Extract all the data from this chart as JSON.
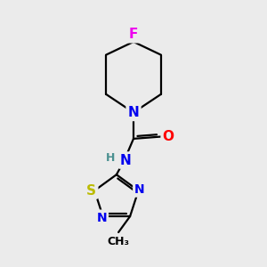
{
  "bg_color": "#ebebeb",
  "bond_color": "#000000",
  "bond_width": 1.6,
  "atom_colors": {
    "N": "#0000ee",
    "O": "#ff0000",
    "S": "#bbbb00",
    "F": "#ee00ee",
    "C": "#000000",
    "H": "#4a9090"
  },
  "font_size": 10
}
